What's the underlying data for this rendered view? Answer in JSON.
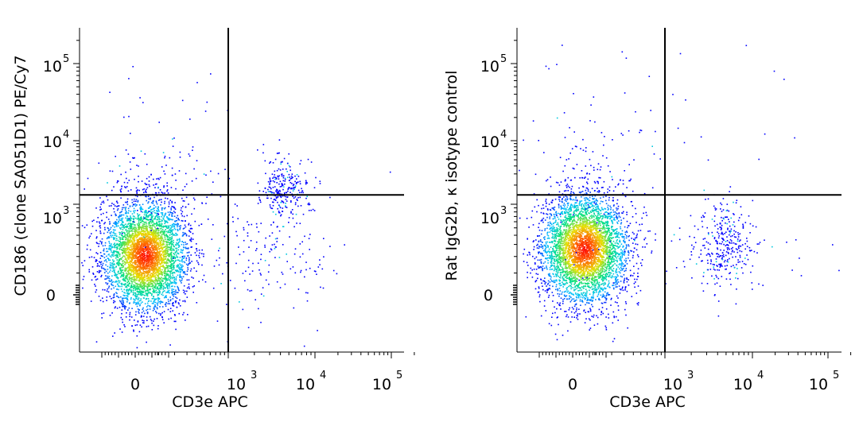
{
  "chart_data": [
    {
      "type": "scatter",
      "subtype": "flow-cytometry-density-dot-plot",
      "xlabel": "CD3e APC",
      "ylabel": "CD186 (clone SA051D1) PE/Cy7",
      "x_scale": "biexponential",
      "y_scale": "biexponential",
      "x_ticks": [
        {
          "base": "0",
          "exp": ""
        },
        {
          "base": "10",
          "exp": "3"
        },
        {
          "base": "10",
          "exp": "4"
        },
        {
          "base": "10",
          "exp": "5"
        }
      ],
      "y_ticks": [
        {
          "base": "0",
          "exp": ""
        },
        {
          "base": "10",
          "exp": "3"
        },
        {
          "base": "10",
          "exp": "4"
        },
        {
          "base": "10",
          "exp": "5"
        }
      ],
      "quadrant_gate": {
        "x": 1000,
        "y": 1400
      },
      "populations": [
        {
          "name": "CD3e- CD186-",
          "x_center": 60,
          "y_center": 300,
          "density": "high"
        },
        {
          "name": "CD3e+ CD186+",
          "x_center": 6000,
          "y_center": 2300,
          "density": "medium"
        },
        {
          "name": "CD3e+ CD186-",
          "x_center": 4000,
          "y_center": 500,
          "density": "low"
        }
      ],
      "color_scale": [
        "#0000ff",
        "#00c0ff",
        "#00e080",
        "#e8e000",
        "#ff6000",
        "#ff0000"
      ]
    },
    {
      "type": "scatter",
      "subtype": "flow-cytometry-density-dot-plot",
      "xlabel": "CD3e APC",
      "ylabel": "Rat IgG2b, κ isotype control",
      "x_scale": "biexponential",
      "y_scale": "biexponential",
      "x_ticks": [
        {
          "base": "0",
          "exp": ""
        },
        {
          "base": "10",
          "exp": "3"
        },
        {
          "base": "10",
          "exp": "4"
        },
        {
          "base": "10",
          "exp": "5"
        }
      ],
      "y_ticks": [
        {
          "base": "0",
          "exp": ""
        },
        {
          "base": "10",
          "exp": "3"
        },
        {
          "base": "10",
          "exp": "4"
        },
        {
          "base": "10",
          "exp": "5"
        }
      ],
      "quadrant_gate": {
        "x": 1000,
        "y": 1400
      },
      "populations": [
        {
          "name": "CD3e- isotype-",
          "x_center": 60,
          "y_center": 350,
          "density": "high"
        },
        {
          "name": "CD3e+ isotype-",
          "x_center": 5500,
          "y_center": 400,
          "density": "medium"
        },
        {
          "name": "CD3e- isotype+ scatter",
          "x_center": 80,
          "y_center": 5000,
          "density": "low"
        }
      ],
      "color_scale": [
        "#0000ff",
        "#00c0ff",
        "#00e080",
        "#e8e000",
        "#ff6000",
        "#ff0000"
      ]
    }
  ]
}
